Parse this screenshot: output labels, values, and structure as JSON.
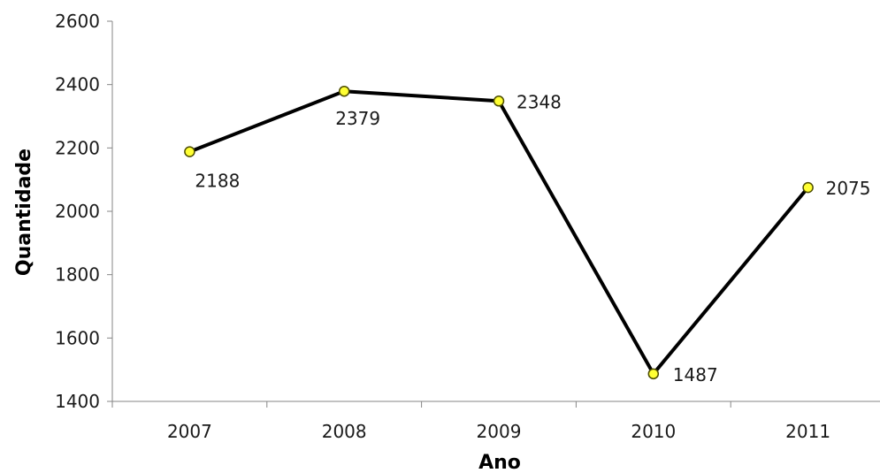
{
  "chart_data": {
    "type": "line",
    "title": "",
    "xlabel": "Ano",
    "ylabel": "Quantidade",
    "categories": [
      "2007",
      "2008",
      "2009",
      "2010",
      "2011"
    ],
    "series": [
      {
        "values": [
          2188,
          2379,
          2348,
          1487,
          2075
        ],
        "line_color": "#000000",
        "marker_fill": "#ffff33",
        "marker_stroke": "#4d4d00"
      }
    ],
    "data_labels": [
      "2188",
      "2379",
      "2348",
      "1487",
      "2075"
    ],
    "ylim": [
      1400,
      2600
    ],
    "yticks": [
      1400,
      1600,
      1800,
      2000,
      2200,
      2400,
      2600
    ],
    "grid": false,
    "legend": "none"
  }
}
